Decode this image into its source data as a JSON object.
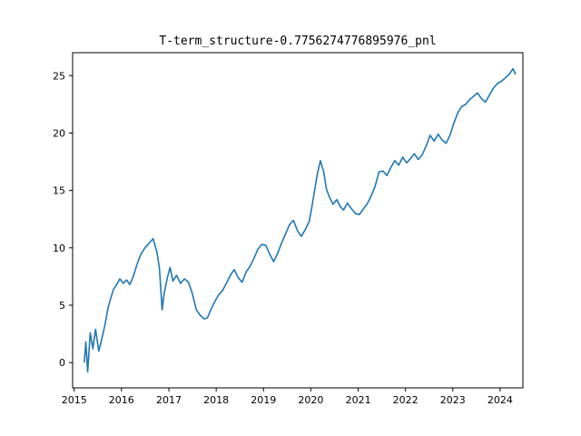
{
  "chart_data": {
    "type": "line",
    "title": "T-term_structure-0.7756274776895976_pnl",
    "xlabel": "",
    "ylabel": "",
    "xlim": [
      "2014-12-20",
      "2024-06-25"
    ],
    "ylim": [
      -2.2,
      27.0
    ],
    "x_ticks": [
      "2015",
      "2016",
      "2017",
      "2018",
      "2019",
      "2020",
      "2021",
      "2022",
      "2023",
      "2024"
    ],
    "y_ticks": [
      0,
      5,
      10,
      15,
      20,
      25
    ],
    "grid": false,
    "legend": "none",
    "series": [
      {
        "color": "#1f77b4",
        "points": [
          [
            "2015-03-20",
            0.0
          ],
          [
            "2015-04-01",
            1.8
          ],
          [
            "2015-04-15",
            -0.8
          ],
          [
            "2015-05-05",
            2.6
          ],
          [
            "2015-05-25",
            1.2
          ],
          [
            "2015-06-15",
            2.9
          ],
          [
            "2015-07-10",
            1.0
          ],
          [
            "2015-08-01",
            2.0
          ],
          [
            "2015-08-25",
            3.2
          ],
          [
            "2015-09-20",
            4.8
          ],
          [
            "2015-10-10",
            5.6
          ],
          [
            "2015-11-01",
            6.4
          ],
          [
            "2015-11-25",
            6.8
          ],
          [
            "2015-12-20",
            7.3
          ],
          [
            "2016-01-15",
            6.9
          ],
          [
            "2016-02-10",
            7.2
          ],
          [
            "2016-03-05",
            6.8
          ],
          [
            "2016-04-01",
            7.5
          ],
          [
            "2016-05-01",
            8.6
          ],
          [
            "2016-06-01",
            9.5
          ],
          [
            "2016-07-01",
            10.0
          ],
          [
            "2016-08-01",
            10.4
          ],
          [
            "2016-09-01",
            10.8
          ],
          [
            "2016-10-01",
            9.6
          ],
          [
            "2016-10-20",
            8.2
          ],
          [
            "2016-11-10",
            4.6
          ],
          [
            "2016-11-25",
            6.0
          ],
          [
            "2016-12-20",
            7.4
          ],
          [
            "2017-01-10",
            8.3
          ],
          [
            "2017-02-01",
            7.1
          ],
          [
            "2017-03-01",
            7.6
          ],
          [
            "2017-04-01",
            6.9
          ],
          [
            "2017-05-01",
            7.3
          ],
          [
            "2017-06-01",
            7.0
          ],
          [
            "2017-07-01",
            6.0
          ],
          [
            "2017-08-01",
            4.6
          ],
          [
            "2017-09-01",
            4.1
          ],
          [
            "2017-10-01",
            3.8
          ],
          [
            "2017-10-25",
            3.9
          ],
          [
            "2017-11-20",
            4.6
          ],
          [
            "2017-12-20",
            5.3
          ],
          [
            "2018-01-20",
            5.9
          ],
          [
            "2018-02-20",
            6.3
          ],
          [
            "2018-03-20",
            6.9
          ],
          [
            "2018-04-20",
            7.6
          ],
          [
            "2018-05-20",
            8.1
          ],
          [
            "2018-06-20",
            7.4
          ],
          [
            "2018-07-20",
            7.0
          ],
          [
            "2018-08-20",
            7.9
          ],
          [
            "2018-09-20",
            8.4
          ],
          [
            "2018-10-20",
            9.1
          ],
          [
            "2018-11-20",
            9.9
          ],
          [
            "2018-12-20",
            10.3
          ],
          [
            "2019-01-20",
            10.2
          ],
          [
            "2019-02-20",
            9.4
          ],
          [
            "2019-03-20",
            8.8
          ],
          [
            "2019-04-20",
            9.5
          ],
          [
            "2019-05-20",
            10.4
          ],
          [
            "2019-06-20",
            11.2
          ],
          [
            "2019-07-20",
            12.0
          ],
          [
            "2019-08-20",
            12.4
          ],
          [
            "2019-09-20",
            11.5
          ],
          [
            "2019-10-20",
            11.0
          ],
          [
            "2019-11-20",
            11.6
          ],
          [
            "2019-12-20",
            12.3
          ],
          [
            "2020-01-10",
            13.6
          ],
          [
            "2020-02-01",
            15.1
          ],
          [
            "2020-02-20",
            16.4
          ],
          [
            "2020-03-15",
            17.6
          ],
          [
            "2020-04-10",
            16.6
          ],
          [
            "2020-05-01",
            15.1
          ],
          [
            "2020-05-25",
            14.4
          ],
          [
            "2020-06-20",
            13.8
          ],
          [
            "2020-07-20",
            14.2
          ],
          [
            "2020-08-15",
            13.6
          ],
          [
            "2020-09-10",
            13.3
          ],
          [
            "2020-10-10",
            13.9
          ],
          [
            "2020-11-10",
            13.4
          ],
          [
            "2020-12-10",
            13.0
          ],
          [
            "2021-01-10",
            12.9
          ],
          [
            "2021-02-10",
            13.4
          ],
          [
            "2021-03-10",
            13.8
          ],
          [
            "2021-04-10",
            14.5
          ],
          [
            "2021-05-10",
            15.3
          ],
          [
            "2021-06-10",
            16.6
          ],
          [
            "2021-07-10",
            16.7
          ],
          [
            "2021-08-10",
            16.3
          ],
          [
            "2021-09-10",
            17.0
          ],
          [
            "2021-10-10",
            17.6
          ],
          [
            "2021-11-10",
            17.2
          ],
          [
            "2021-12-10",
            17.9
          ],
          [
            "2022-01-10",
            17.4
          ],
          [
            "2022-02-10",
            17.8
          ],
          [
            "2022-03-10",
            18.2
          ],
          [
            "2022-04-10",
            17.7
          ],
          [
            "2022-05-10",
            18.1
          ],
          [
            "2022-06-10",
            18.9
          ],
          [
            "2022-07-10",
            19.8
          ],
          [
            "2022-08-10",
            19.3
          ],
          [
            "2022-09-10",
            19.9
          ],
          [
            "2022-10-10",
            19.4
          ],
          [
            "2022-11-10",
            19.1
          ],
          [
            "2022-12-10",
            19.8
          ],
          [
            "2023-01-10",
            20.9
          ],
          [
            "2023-02-10",
            21.8
          ],
          [
            "2023-03-10",
            22.3
          ],
          [
            "2023-04-10",
            22.5
          ],
          [
            "2023-05-10",
            22.9
          ],
          [
            "2023-06-10",
            23.2
          ],
          [
            "2023-07-10",
            23.5
          ],
          [
            "2023-08-10",
            23.0
          ],
          [
            "2023-09-10",
            22.7
          ],
          [
            "2023-10-10",
            23.3
          ],
          [
            "2023-11-10",
            23.9
          ],
          [
            "2023-12-10",
            24.3
          ],
          [
            "2024-01-10",
            24.5
          ],
          [
            "2024-02-10",
            24.8
          ],
          [
            "2024-03-10",
            25.1
          ],
          [
            "2024-04-10",
            25.6
          ],
          [
            "2024-04-30",
            25.1
          ]
        ]
      }
    ]
  }
}
